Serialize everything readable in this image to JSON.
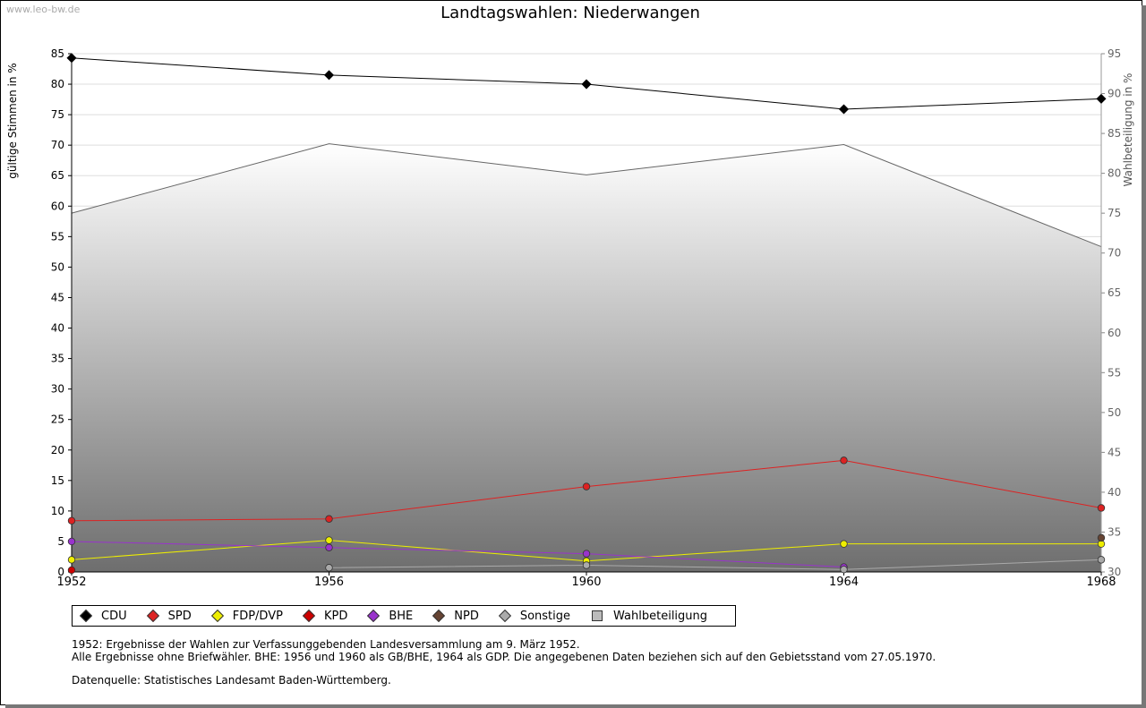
{
  "watermark": "www.leo-bw.de",
  "legend": {
    "cdu": "CDU",
    "spd": "SPD",
    "fdp": "FDP/DVP",
    "kpd": "KPD",
    "bhe": "BHE",
    "npd": "NPD",
    "sonstige": "Sonstige",
    "wahl": "Wahlbeteiligung"
  },
  "notes": {
    "line1": "1952: Ergebnisse der Wahlen zur Verfassunggebenden Landesversammlung am 9. März 1952.",
    "line2": "Alle Ergebnisse ohne Briefwähler. BHE: 1956 und 1960 als GB/BHE, 1964 als GDP. Die angegebenen Daten beziehen sich auf den Gebietsstand vom 27.05.1970.",
    "source": "Datenquelle: Statistisches Landesamt Baden-Württemberg."
  },
  "chart_data": {
    "type": "line",
    "title": "Landtagswahlen: Niederwangen",
    "ylabel": "gültige Stimmen in %",
    "y2label": "Wahlbeteiligung in %",
    "x": [
      1952,
      1956,
      1960,
      1964,
      1968
    ],
    "ylim": [
      0,
      85
    ],
    "yticks": [
      0,
      5,
      10,
      15,
      20,
      25,
      30,
      35,
      40,
      45,
      50,
      55,
      60,
      65,
      70,
      75,
      80,
      85
    ],
    "y2lim": [
      30,
      95
    ],
    "y2ticks": [
      30,
      35,
      40,
      45,
      50,
      55,
      60,
      65,
      70,
      75,
      80,
      85,
      90,
      95
    ],
    "grid": true,
    "legend_position": "bottom",
    "series": [
      {
        "name": "CDU",
        "color": "#000000",
        "values": [
          84.3,
          81.5,
          80.0,
          75.9,
          77.6
        ]
      },
      {
        "name": "SPD",
        "color": "#dd2222",
        "values": [
          8.4,
          8.7,
          14.0,
          18.3,
          10.5
        ]
      },
      {
        "name": "FDP/DVP",
        "color": "#eeee00",
        "values": [
          2.0,
          5.2,
          1.8,
          4.6,
          4.6
        ]
      },
      {
        "name": "KPD",
        "color": "#cc0000",
        "values": [
          0.3,
          null,
          null,
          null,
          null
        ]
      },
      {
        "name": "BHE",
        "color": "#9933cc",
        "values": [
          5.0,
          4.0,
          3.0,
          0.8,
          null
        ]
      },
      {
        "name": "NPD",
        "color": "#664433",
        "values": [
          null,
          null,
          null,
          null,
          5.6
        ]
      },
      {
        "name": "Sonstige",
        "color": "#aaaaaa",
        "values": [
          null,
          0.7,
          1.1,
          0.4,
          2.0
        ]
      }
    ],
    "turnout": {
      "name": "Wahlbeteiligung",
      "values": [
        75.0,
        83.7,
        79.8,
        83.6,
        70.8
      ]
    }
  }
}
